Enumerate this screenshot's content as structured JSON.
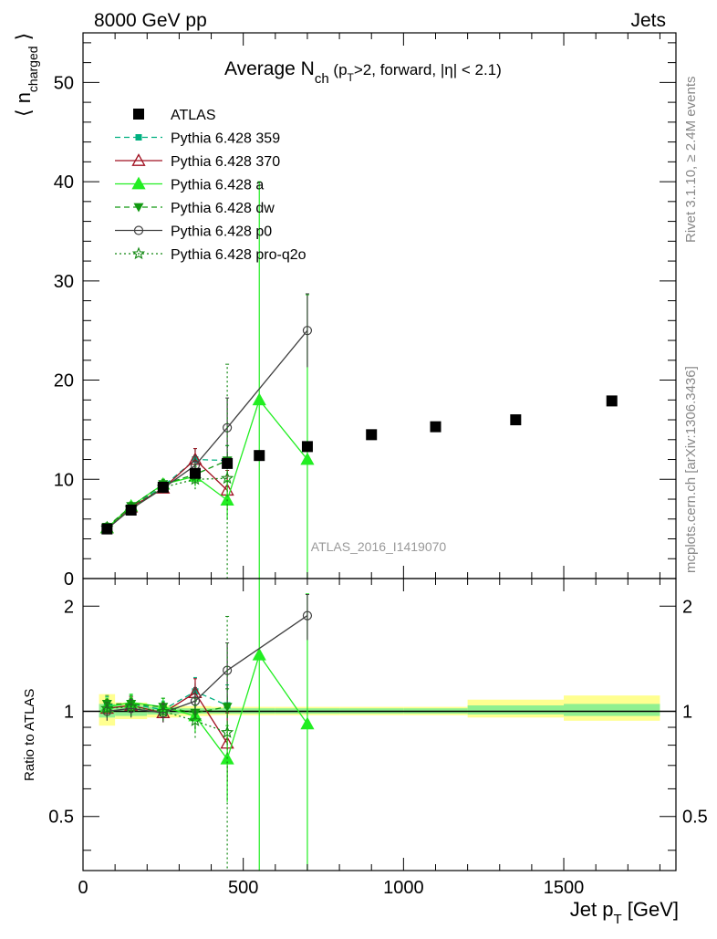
{
  "header": {
    "energy_label": "8000 GeV pp",
    "category_label": "Jets"
  },
  "side_labels": {
    "rivet": "Rivet 3.1.10, ≥ 2.4M events",
    "mcplots": "mcplots.cern.ch [arXiv:1306.3436]"
  },
  "watermark": "ATLAS_2016_I1419070",
  "colors": {
    "data": "#000000",
    "p359": "#00b080",
    "p370": "#a01020",
    "pa": "#22ee22",
    "pdw": "#119911",
    "pp0": "#404040",
    "ppro": "#118811",
    "band_outer": "#ffff90",
    "band_inner": "#90f090"
  },
  "chart_data": [
    {
      "type": "scatter",
      "title_parts": {
        "main": "Average N",
        "sub": "ch",
        "cond_a": " (p",
        "cond_sub": "T",
        "cond_b": ">2, forward, |η| < 2.1)"
      },
      "ylabel_parts": {
        "main": "⟨ n",
        "sub": "charged",
        "close": " ⟩"
      },
      "xlim": [
        0,
        1850
      ],
      "ylim": [
        0,
        55
      ],
      "x_ticks": [
        0,
        500,
        1000,
        1500
      ],
      "y_ticks": [
        0,
        10,
        20,
        30,
        40,
        50
      ],
      "y_tick_labels": [
        "0",
        "10",
        "20",
        "30",
        "40",
        "50"
      ],
      "legend_position": "top-left",
      "series": [
        {
          "name": "ATLAS",
          "key": "data",
          "marker": "square",
          "line": "none",
          "x": [
            75,
            150,
            250,
            350,
            450,
            550,
            700,
            900,
            1100,
            1350,
            1650
          ],
          "y": [
            5.0,
            6.9,
            9.2,
            10.6,
            11.6,
            12.4,
            13.3,
            14.5,
            15.3,
            16.0,
            17.9
          ],
          "err": [
            0.3,
            0.3,
            0.3,
            0.3,
            0.3,
            0.3,
            0.3,
            0.3,
            0.3,
            0.3,
            0.3
          ],
          "bins": [
            [
              50,
              100
            ],
            [
              100,
              200
            ],
            [
              200,
              300
            ],
            [
              300,
              400
            ],
            [
              400,
              500
            ],
            [
              500,
              600
            ],
            [
              600,
              800
            ],
            [
              800,
              1000
            ],
            [
              1000,
              1200
            ],
            [
              1200,
              1500
            ],
            [
              1500,
              1800
            ]
          ]
        },
        {
          "name": "Pythia 6.428 359",
          "key": "p359",
          "marker": "smallsquare",
          "line": "dashed",
          "x": [
            75,
            150,
            250,
            350,
            450
          ],
          "y": [
            5.2,
            7.2,
            9.3,
            12.0,
            11.9
          ],
          "err": [
            0.4,
            0.4,
            0.5,
            1.1,
            1.5
          ]
        },
        {
          "name": "Pythia 6.428 370",
          "key": "p370",
          "marker": "triangle-open",
          "line": "solid",
          "x": [
            75,
            150,
            250,
            350,
            450
          ],
          "y": [
            5.1,
            7.2,
            9.1,
            12.0,
            8.9
          ],
          "err": [
            0.4,
            0.4,
            0.5,
            1.1,
            2.0
          ]
        },
        {
          "name": "Pythia 6.428 a",
          "key": "pa",
          "marker": "triangle",
          "line": "solid",
          "x": [
            75,
            150,
            250,
            350,
            450,
            550,
            700
          ],
          "y": [
            5.1,
            7.3,
            9.5,
            10.3,
            7.9,
            18.0,
            12.0
          ],
          "err": [
            0.4,
            0.4,
            0.5,
            1.0,
            2.0,
            22.0,
            16.6
          ]
        },
        {
          "name": "Pythia 6.428 dw",
          "key": "pdw",
          "marker": "triangle-down",
          "line": "dashed",
          "x": [
            75,
            150,
            250,
            350,
            450
          ],
          "y": [
            5.2,
            7.3,
            9.5,
            10.5,
            11.9
          ],
          "err": [
            0.4,
            0.4,
            0.5,
            1.0,
            1.5
          ]
        },
        {
          "name": "Pythia 6.428 p0",
          "key": "pp0",
          "marker": "circle-open",
          "line": "solid",
          "x": [
            75,
            150,
            250,
            350,
            450,
            700
          ],
          "y": [
            5.0,
            7.0,
            9.1,
            11.4,
            15.2,
            25.0
          ],
          "err": [
            0.4,
            0.4,
            0.5,
            1.0,
            3.0,
            3.7
          ]
        },
        {
          "name": "Pythia 6.428 pro-q2o",
          "key": "ppro",
          "marker": "star-open",
          "line": "dotted",
          "x": [
            75,
            150,
            250,
            350,
            450
          ],
          "y": [
            5.1,
            7.1,
            9.2,
            10.0,
            10.1
          ],
          "err": [
            0.4,
            0.4,
            0.5,
            1.0,
            11.5
          ]
        }
      ]
    },
    {
      "type": "scatter",
      "ylabel": "Ratio to ATLAS",
      "xlabel_parts": {
        "main": "Jet p",
        "sub": "T",
        "unit": " [GeV]"
      },
      "xlim": [
        0,
        1850
      ],
      "ylim": [
        0.35,
        2.4
      ],
      "x_ticks": [
        0,
        500,
        1000,
        1500
      ],
      "x_tick_labels": [
        "0",
        "500",
        "1000",
        "1500"
      ],
      "y_ticks": [
        0.5,
        1,
        2
      ],
      "y_tick_labels": [
        "0.5",
        "1",
        "2"
      ],
      "reference_line": 1,
      "bands": [
        {
          "x0": 50,
          "x1": 100,
          "inner": [
            0.96,
            1.05
          ],
          "outer": [
            0.91,
            1.12
          ]
        },
        {
          "x0": 100,
          "x1": 200,
          "inner": [
            0.97,
            1.04
          ],
          "outer": [
            0.95,
            1.06
          ]
        },
        {
          "x0": 200,
          "x1": 300,
          "inner": [
            0.98,
            1.03
          ],
          "outer": [
            0.96,
            1.04
          ]
        },
        {
          "x0": 300,
          "x1": 400,
          "inner": [
            0.985,
            1.02
          ],
          "outer": [
            0.97,
            1.035
          ]
        },
        {
          "x0": 400,
          "x1": 500,
          "inner": [
            0.985,
            1.02
          ],
          "outer": [
            0.975,
            1.03
          ]
        },
        {
          "x0": 500,
          "x1": 600,
          "inner": [
            0.985,
            1.02
          ],
          "outer": [
            0.975,
            1.03
          ]
        },
        {
          "x0": 600,
          "x1": 800,
          "inner": [
            0.985,
            1.02
          ],
          "outer": [
            0.975,
            1.03
          ]
        },
        {
          "x0": 800,
          "x1": 1000,
          "inner": [
            0.985,
            1.02
          ],
          "outer": [
            0.975,
            1.03
          ]
        },
        {
          "x0": 1000,
          "x1": 1200,
          "inner": [
            0.985,
            1.02
          ],
          "outer": [
            0.975,
            1.03
          ]
        },
        {
          "x0": 1200,
          "x1": 1500,
          "inner": [
            0.98,
            1.04
          ],
          "outer": [
            0.96,
            1.08
          ]
        },
        {
          "x0": 1500,
          "x1": 1800,
          "inner": [
            0.97,
            1.05
          ],
          "outer": [
            0.94,
            1.11
          ]
        }
      ],
      "series": [
        {
          "name": "Pythia 6.428 359",
          "key": "p359",
          "marker": "smallsquare",
          "line": "dashed",
          "x": [
            75,
            150,
            250,
            350,
            450
          ],
          "y": [
            1.04,
            1.05,
            1.01,
            1.14,
            1.04
          ],
          "err": [
            0.06,
            0.06,
            0.06,
            0.11,
            0.15
          ]
        },
        {
          "name": "Pythia 6.428 370",
          "key": "p370",
          "marker": "triangle-open",
          "line": "solid",
          "x": [
            75,
            150,
            250,
            350,
            450
          ],
          "y": [
            1.02,
            1.04,
            0.99,
            1.13,
            0.81
          ],
          "err": [
            0.06,
            0.06,
            0.06,
            0.11,
            0.18
          ]
        },
        {
          "name": "Pythia 6.428 a",
          "key": "pa",
          "marker": "triangle",
          "line": "solid",
          "x": [
            75,
            150,
            250,
            350,
            450,
            550,
            700
          ],
          "y": [
            1.03,
            1.06,
            1.03,
            0.97,
            0.73,
            1.45,
            0.92
          ],
          "err": [
            0.06,
            0.06,
            0.06,
            0.1,
            0.18,
            1.8,
            1.25
          ]
        },
        {
          "name": "Pythia 6.428 dw",
          "key": "pdw",
          "marker": "triangle-down",
          "line": "dashed",
          "x": [
            75,
            150,
            250,
            350,
            450
          ],
          "y": [
            1.05,
            1.05,
            1.03,
            0.99,
            1.03
          ],
          "err": [
            0.06,
            0.06,
            0.06,
            0.1,
            0.13
          ]
        },
        {
          "name": "Pythia 6.428 p0",
          "key": "pp0",
          "marker": "circle-open",
          "line": "solid",
          "x": [
            75,
            150,
            250,
            350,
            450,
            700
          ],
          "y": [
            1.0,
            1.02,
            0.99,
            1.07,
            1.31,
            1.88
          ],
          "err": [
            0.06,
            0.06,
            0.06,
            0.1,
            0.26,
            0.28
          ]
        },
        {
          "name": "Pythia 6.428 pro-q2o",
          "key": "ppro",
          "marker": "star-open",
          "line": "dotted",
          "x": [
            75,
            150,
            250,
            350,
            450
          ],
          "y": [
            1.02,
            1.03,
            1.0,
            0.94,
            0.87
          ],
          "err": [
            0.06,
            0.06,
            0.06,
            0.1,
            1.0
          ]
        }
      ]
    }
  ]
}
